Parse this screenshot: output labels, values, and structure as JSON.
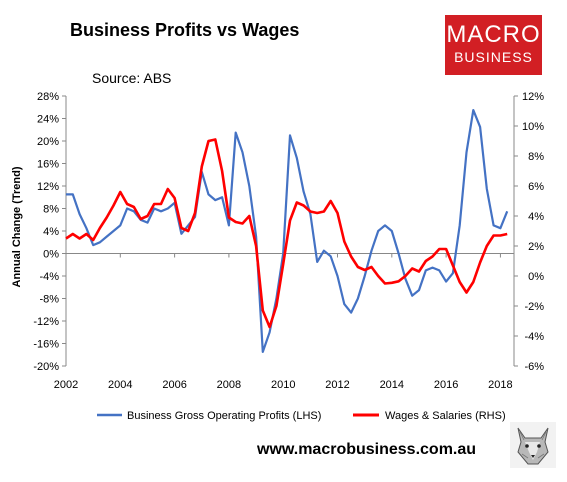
{
  "header": {
    "title": "Business Profits vs Wages",
    "source": "Source: ABS",
    "logo_line1": "MACRO",
    "logo_line2": "BUSINESS"
  },
  "footer": {
    "website": "www.macrobusiness.com.au"
  },
  "colors": {
    "profits": "#4472c4",
    "wages": "#ff0000",
    "logo": "#d21f24"
  },
  "chart_data": {
    "type": "line",
    "ylabel": "Annual Change (Trend)",
    "xlim": [
      2002,
      2018.5
    ],
    "x_ticks": [
      2002,
      2004,
      2006,
      2008,
      2010,
      2012,
      2014,
      2016,
      2018
    ],
    "x_tick_labels": [
      "2002",
      "2004",
      "2006",
      "2008",
      "2010",
      "2012",
      "2014",
      "2016",
      "2018"
    ],
    "ylim_left": [
      -20,
      28
    ],
    "ylim_right": [
      -6,
      12
    ],
    "y_ticks_left": [
      -20,
      -16,
      -12,
      -8,
      -4,
      0,
      4,
      8,
      12,
      16,
      20,
      24,
      28
    ],
    "y_tick_labels_left": [
      "-20%",
      "-16%",
      "-12%",
      "-8%",
      "-4%",
      "0%",
      "4%",
      "8%",
      "12%",
      "16%",
      "20%",
      "24%",
      "28%"
    ],
    "y_ticks_right": [
      -6,
      -4,
      -2,
      0,
      2,
      4,
      6,
      8,
      10,
      12
    ],
    "y_tick_labels_right": [
      "-6%",
      "-4%",
      "-2%",
      "0%",
      "2%",
      "4%",
      "6%",
      "8%",
      "10%",
      "12%"
    ],
    "grid": false,
    "legend_position": "bottom",
    "series": [
      {
        "name": "Business Gross Operating Profits (LHS)",
        "axis": "left",
        "color": "#4472c4",
        "x": [
          2002.0,
          2002.25,
          2002.5,
          2002.75,
          2003.0,
          2003.25,
          2003.5,
          2003.75,
          2004.0,
          2004.25,
          2004.5,
          2004.75,
          2005.0,
          2005.25,
          2005.5,
          2005.75,
          2006.0,
          2006.25,
          2006.5,
          2006.75,
          2007.0,
          2007.25,
          2007.5,
          2007.75,
          2008.0,
          2008.25,
          2008.5,
          2008.75,
          2009.0,
          2009.25,
          2009.5,
          2009.75,
          2010.0,
          2010.25,
          2010.5,
          2010.75,
          2011.0,
          2011.25,
          2011.5,
          2011.75,
          2012.0,
          2012.25,
          2012.5,
          2012.75,
          2013.0,
          2013.25,
          2013.5,
          2013.75,
          2014.0,
          2014.25,
          2014.5,
          2014.75,
          2015.0,
          2015.25,
          2015.5,
          2015.75,
          2016.0,
          2016.25,
          2016.5,
          2016.75,
          2017.0,
          2017.25,
          2017.5,
          2017.75,
          2018.0,
          2018.25
        ],
        "values": [
          10.5,
          10.5,
          7,
          4.5,
          1.5,
          2,
          3,
          4,
          5,
          8,
          7.5,
          6,
          5.5,
          8,
          7.5,
          8,
          9,
          3.5,
          5,
          6.5,
          14.5,
          10.5,
          9.5,
          10,
          5,
          21.5,
          18,
          12,
          3,
          -17.5,
          -14,
          -8,
          0,
          21,
          17,
          11,
          7,
          -1.5,
          0.5,
          -0.5,
          -4,
          -9,
          -10.5,
          -8,
          -4,
          0.5,
          4,
          5,
          4,
          0,
          -4.5,
          -7.5,
          -6.5,
          -3,
          -2.5,
          -3,
          -5,
          -3.5,
          5,
          18,
          25.5,
          22.5,
          11.5,
          5,
          4.5,
          7.5
        ]
      },
      {
        "name": "Wages & Salaries (RHS)",
        "axis": "right",
        "color": "#ff0000",
        "x": [
          2002.0,
          2002.25,
          2002.5,
          2002.75,
          2003.0,
          2003.25,
          2003.5,
          2003.75,
          2004.0,
          2004.25,
          2004.5,
          2004.75,
          2005.0,
          2005.25,
          2005.5,
          2005.75,
          2006.0,
          2006.25,
          2006.5,
          2006.75,
          2007.0,
          2007.25,
          2007.5,
          2007.75,
          2008.0,
          2008.25,
          2008.5,
          2008.75,
          2009.0,
          2009.25,
          2009.5,
          2009.75,
          2010.0,
          2010.25,
          2010.5,
          2010.75,
          2011.0,
          2011.25,
          2011.5,
          2011.75,
          2012.0,
          2012.25,
          2012.5,
          2012.75,
          2013.0,
          2013.25,
          2013.5,
          2013.75,
          2014.0,
          2014.25,
          2014.5,
          2014.75,
          2015.0,
          2015.25,
          2015.5,
          2015.75,
          2016.0,
          2016.25,
          2016.5,
          2016.75,
          2017.0,
          2017.25,
          2017.5,
          2017.75,
          2018.0,
          2018.25
        ],
        "values": [
          2.5,
          2.8,
          2.5,
          2.8,
          2.4,
          3.2,
          3.9,
          4.7,
          5.6,
          4.8,
          4.6,
          3.8,
          4.0,
          4.8,
          4.8,
          5.8,
          5.2,
          3.2,
          3.0,
          4.2,
          7.3,
          9.0,
          9.1,
          7.0,
          3.9,
          3.6,
          3.5,
          4.0,
          2.0,
          -2.3,
          -3.4,
          -2.0,
          0.8,
          3.7,
          4.9,
          4.7,
          4.3,
          4.2,
          4.3,
          5.0,
          4.2,
          2.3,
          1.3,
          0.6,
          0.4,
          0.6,
          0.0,
          -0.5,
          -0.45,
          -0.35,
          0.0,
          0.5,
          0.3,
          1.0,
          1.3,
          1.8,
          1.8,
          0.7,
          -0.4,
          -1.1,
          -0.4,
          0.9,
          2.0,
          2.7,
          2.7,
          2.8
        ]
      }
    ]
  }
}
